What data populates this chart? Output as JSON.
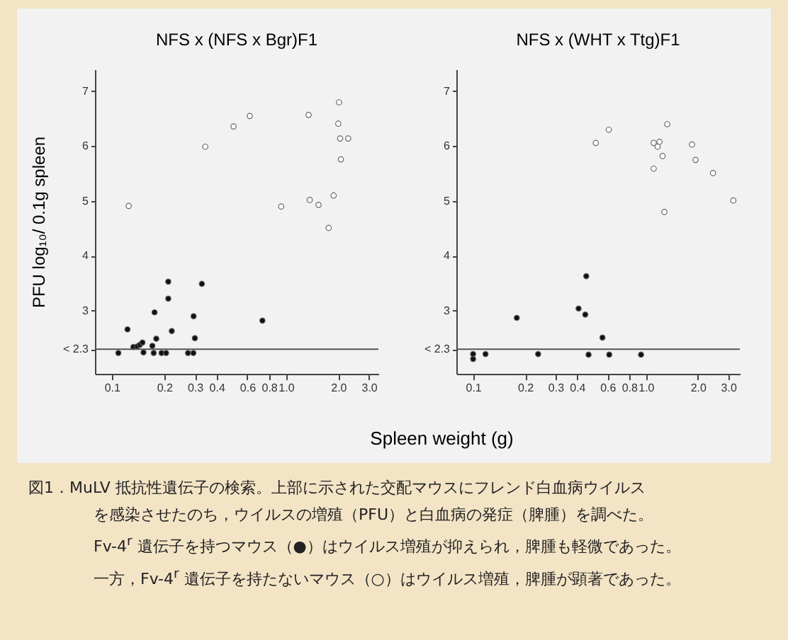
{
  "chart_data": [
    {
      "type": "scatter",
      "title": "NFS x (NFS x Bgr)F1",
      "xlabel": "Spleen weight (g)",
      "ylabel": "PFU log₁₀/ 0.1g spleen",
      "log": "x",
      "grid": false,
      "marker": "circle",
      "xlim": [
        0.08,
        3.4
      ],
      "xticks": [
        0.1,
        0.2,
        0.3,
        0.4,
        0.6,
        0.8,
        {
          "value": 1,
          "label": "1.0"
        },
        {
          "value": 2,
          "label": "2.0"
        },
        {
          "value": 3,
          "label": "3.0"
        }
      ],
      "ylim": [
        1.85,
        7.4
      ],
      "yticks": [
        {
          "value": 2.3,
          "label": "< 2.3"
        },
        3,
        4,
        5,
        6,
        7
      ],
      "ref_lines": [
        {
          "axis": "y",
          "value": 2.3,
          "color": "#555555"
        }
      ],
      "annotations": [
        "図1．MuLV 抵抗性遺伝子の検索。上部に示された交配マウスにフレンド白血病ウイルス",
        "を感染させたのち，ウイルスの増殖（PFU）と白血病の発症（脾腫）を調べた。",
        "Fv-4$^{r}$ 遺伝子を持つマウス（●）はウイルス増殖が抑えられ，脾腫も軽微であった。",
        "一方，Fv-4$^{r}$ 遺伝子を持たないマウス（○）はウイルス増殖，脾腫が顕著であった。"
      ],
      "series": [
        {
          "color": "#ffffff",
          "x": [
            0.125,
            0.344,
            0.5,
            0.62,
            0.94,
            1.35,
            1.37,
            1.54,
            1.76,
            1.88,
            2.02,
            2.0,
            2.05,
            2.28,
            2.07
          ],
          "values": [
            4.91,
            5.99,
            6.36,
            6.55,
            4.9,
            6.57,
            5.02,
            4.93,
            4.51,
            5.1,
            6.8,
            6.41,
            6.14,
            6.14,
            5.76
          ]
        },
        {
          "color": "#111111",
          "x": [
            0.109,
            0.123,
            0.133,
            0.14,
            0.145,
            0.15,
            0.152,
            0.171,
            0.174,
            0.176,
            0.18,
            0.193,
            0.205,
            0.211,
            0.211,
            0.221,
            0.274,
            0.294,
            0.295,
            0.3,
            0.329,
            0.733
          ],
          "values": [
            2.23,
            2.66,
            2.34,
            2.35,
            2.38,
            2.42,
            2.24,
            2.36,
            2.23,
            2.97,
            2.49,
            2.23,
            2.23,
            3.53,
            3.22,
            2.63,
            2.23,
            2.23,
            2.9,
            2.5,
            3.49,
            2.82
          ]
        }
      ]
    },
    {
      "type": "scatter",
      "title": "NFS x (WHT x Ttg)F1",
      "log": "x",
      "grid": false,
      "marker": "circle",
      "xlim": [
        0.08,
        3.5
      ],
      "xticks": [
        0.1,
        0.2,
        0.3,
        0.4,
        0.6,
        0.8,
        {
          "value": 1,
          "label": "1.0"
        },
        {
          "value": 2,
          "label": "2.0"
        },
        {
          "value": 3,
          "label": "3.0"
        }
      ],
      "ylim": [
        1.85,
        7.4
      ],
      "yticks": [
        {
          "value": 2.3,
          "label": "< 2.3"
        },
        3,
        4,
        5,
        6,
        7
      ],
      "ref_lines": [
        {
          "axis": "y",
          "value": 2.3,
          "color": "#555555"
        }
      ],
      "series": [
        {
          "color": "#ffffff",
          "x": [
            0.513,
            0.61,
            1.11,
            1.2,
            1.17,
            1.33,
            1.11,
            1.25,
            1.28,
            1.85,
            1.94,
            2.45,
            3.21
          ],
          "values": [
            6.06,
            6.3,
            6.06,
            6.08,
            5.99,
            6.4,
            5.59,
            5.82,
            4.8,
            6.03,
            5.75,
            5.51,
            5.01
          ]
        },
        {
          "color": "#111111",
          "x": [
            0.1,
            0.1,
            0.118,
            0.179,
            0.238,
            0.408,
            0.446,
            0.452,
            0.466,
            0.561,
            0.614,
            0.938
          ],
          "values": [
            2.21,
            2.12,
            2.21,
            2.87,
            2.21,
            3.04,
            2.93,
            3.63,
            2.2,
            2.51,
            2.2,
            2.2
          ]
        }
      ]
    }
  ]
}
